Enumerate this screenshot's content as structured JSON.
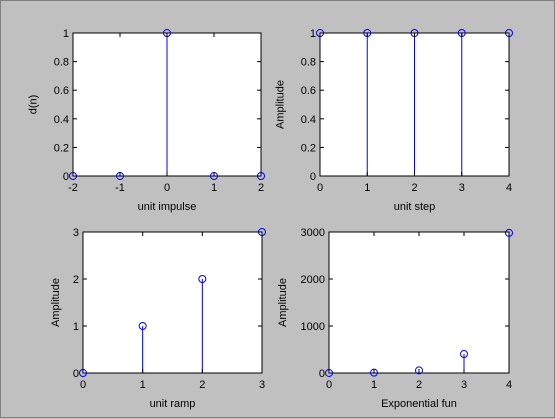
{
  "chart_data": [
    {
      "type": "stem",
      "xlabel": "unit impulse",
      "ylabel": "d(n)",
      "xlim": [
        -2,
        2
      ],
      "ylim": [
        0,
        1
      ],
      "xticks": [
        "-2",
        "-1",
        "0",
        "1",
        "2"
      ],
      "yticks": [
        "0",
        "0.2",
        "0.4",
        "0.6",
        "0.8",
        "1"
      ],
      "x": [
        -2,
        -1,
        0,
        1,
        2
      ],
      "y": [
        0,
        0,
        1,
        0,
        0
      ]
    },
    {
      "type": "stem",
      "xlabel": "unit step",
      "ylabel": "Amplitude",
      "xlim": [
        0,
        4
      ],
      "ylim": [
        0,
        1
      ],
      "xticks": [
        "0",
        "1",
        "2",
        "3",
        "4"
      ],
      "yticks": [
        "0",
        "0.2",
        "0.4",
        "0.6",
        "0.8",
        "1"
      ],
      "x": [
        0,
        1,
        2,
        3,
        4
      ],
      "y": [
        1,
        1,
        1,
        1,
        1
      ]
    },
    {
      "type": "stem",
      "xlabel": "unit ramp",
      "ylabel": "Amplitude",
      "xlim": [
        0,
        3
      ],
      "ylim": [
        0,
        3
      ],
      "xticks": [
        "0",
        "1",
        "2",
        "3"
      ],
      "yticks": [
        "0",
        "1",
        "2",
        "3"
      ],
      "x": [
        0,
        1,
        2,
        3
      ],
      "y": [
        0,
        1,
        2,
        3
      ]
    },
    {
      "type": "stem",
      "xlabel": "Exponential fun",
      "ylabel": "Amplitude",
      "xlim": [
        0,
        4
      ],
      "ylim": [
        0,
        3000
      ],
      "xticks": [
        "0",
        "1",
        "2",
        "3",
        "4"
      ],
      "yticks": [
        "0",
        "1000",
        "2000",
        "3000"
      ],
      "x": [
        0,
        1,
        2,
        3,
        4
      ],
      "y": [
        1,
        7,
        55,
        403,
        2981
      ]
    }
  ],
  "colors": {
    "figure_background": "#c0c0c0",
    "axes_background": "#ffffff",
    "stem_color": "#0000ff",
    "axis_color": "#000000"
  }
}
